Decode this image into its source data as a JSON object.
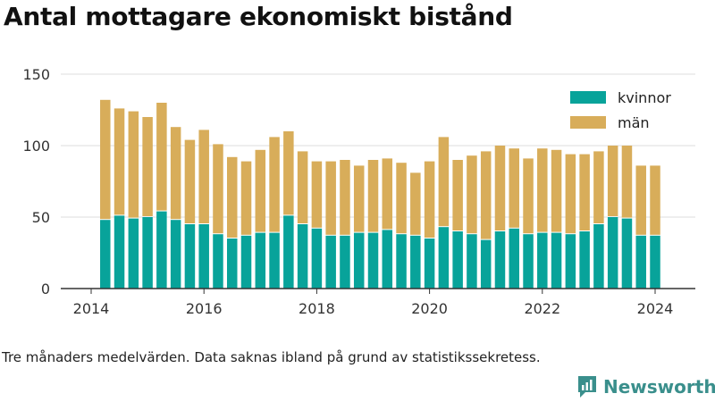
{
  "title": "Antal mottagare ekonomiskt bistånd",
  "note": "Tre månaders medelvärden. Data saknas ibland på grund av statistikssekretess.",
  "brand": "Newsworthy",
  "colors": {
    "kvinnor": "#08a39a",
    "man": "#d8ad5a",
    "grid": "#dddddd",
    "axis": "#333333"
  },
  "chart_data": {
    "type": "bar",
    "stacked": true,
    "xlabel": "",
    "ylabel": "",
    "ylim": [
      0,
      150
    ],
    "yticks": [
      0,
      50,
      100,
      150
    ],
    "xlim": [
      2014,
      2024.7
    ],
    "xticks": [
      "2014",
      "2016",
      "2018",
      "2020",
      "2022",
      "2024"
    ],
    "legend_position": "top-right",
    "grid": true,
    "x": [
      "2014-04",
      "2014-07",
      "2014-10",
      "2015-01",
      "2015-04",
      "2015-07",
      "2015-10",
      "2016-01",
      "2016-04",
      "2016-07",
      "2016-10",
      "2017-01",
      "2017-04",
      "2017-07",
      "2017-10",
      "2018-01",
      "2018-04",
      "2018-07",
      "2018-10",
      "2019-01",
      "2019-04",
      "2019-07",
      "2019-10",
      "2020-01",
      "2020-04",
      "2020-07",
      "2020-10",
      "2021-01",
      "2021-04",
      "2021-07",
      "2021-10",
      "2022-01",
      "2022-04",
      "2022-07",
      "2022-10",
      "2023-01",
      "2023-04",
      "2023-07",
      "2023-10",
      "2024-01"
    ],
    "series": [
      {
        "name": "kvinnor",
        "values": [
          48,
          51,
          49,
          50,
          54,
          48,
          45,
          45,
          38,
          35,
          37,
          39,
          39,
          51,
          45,
          42,
          37,
          37,
          39,
          39,
          41,
          38,
          37,
          35,
          43,
          40,
          38,
          34,
          40,
          42,
          38,
          39,
          39,
          38,
          40,
          45,
          50,
          49,
          37,
          37
        ]
      },
      {
        "name": "män",
        "values": [
          84,
          75,
          75,
          70,
          76,
          65,
          59,
          66,
          63,
          57,
          52,
          58,
          67,
          59,
          51,
          47,
          52,
          53,
          47,
          51,
          50,
          50,
          44,
          54,
          63,
          50,
          55,
          62,
          60,
          56,
          53,
          59,
          58,
          56,
          54,
          51,
          50,
          51,
          49,
          49
        ]
      }
    ]
  }
}
